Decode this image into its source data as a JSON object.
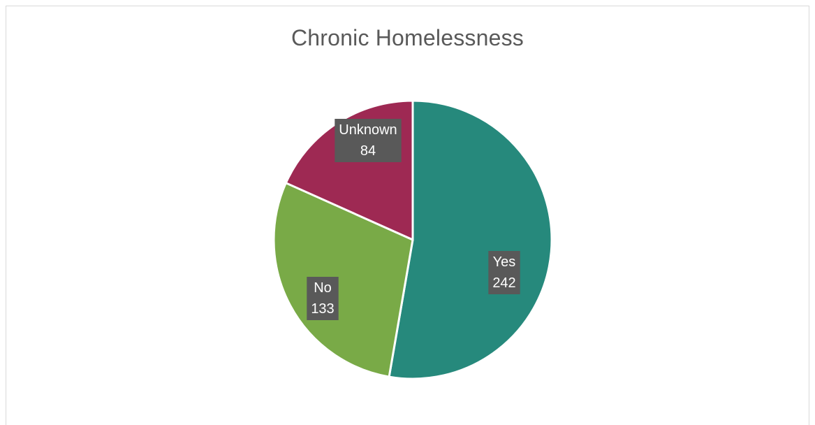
{
  "chart_data": {
    "type": "pie",
    "title": "Chronic Homelessness",
    "slices": [
      {
        "label": "Yes",
        "value": 242,
        "color": "#26897c"
      },
      {
        "label": "No",
        "value": 133,
        "color": "#79aa47"
      },
      {
        "label": "Unknown",
        "value": 84,
        "color": "#9e2953"
      }
    ],
    "data_label_background": "#595959",
    "legend": "none"
  }
}
